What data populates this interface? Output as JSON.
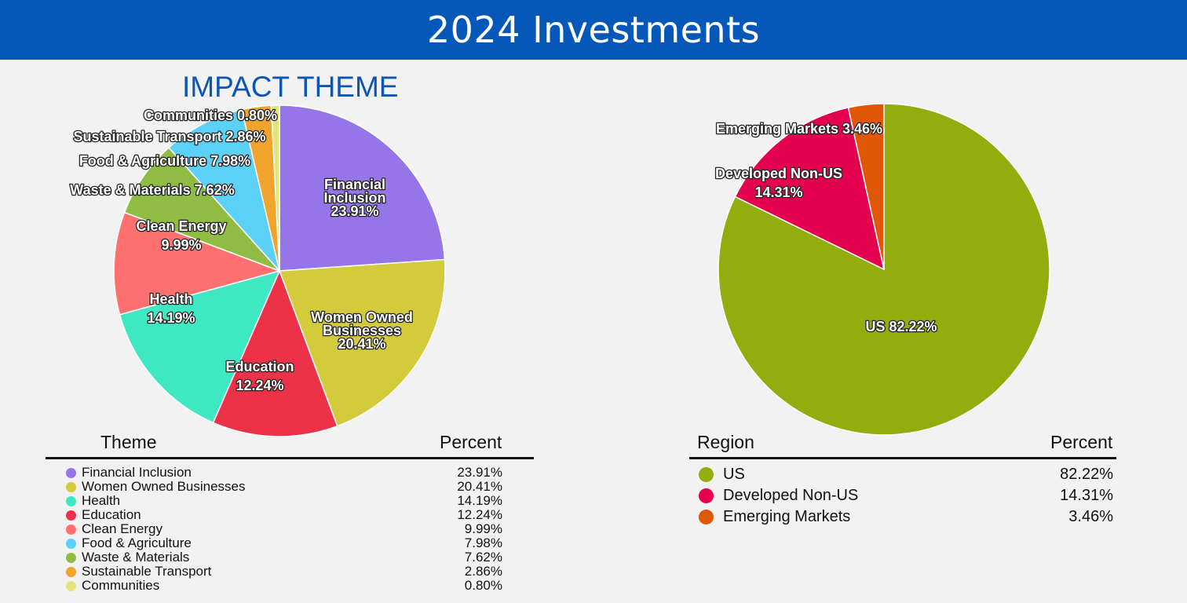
{
  "header": {
    "title": "2024 Investments"
  },
  "theme_chart_title": "IMPACT THEME",
  "theme_table": {
    "col1": "Theme",
    "col2": "Percent"
  },
  "region_table": {
    "col1": "Region",
    "col2": "Percent"
  },
  "chart_data": [
    {
      "type": "pie",
      "title": "IMPACT THEME",
      "slices": [
        {
          "label": "Financial Inclusion",
          "pie_label": [
            "Financial",
            "Inclusion",
            "23.91%"
          ],
          "percent_text": "23.91%",
          "value": 23.91,
          "color": "#9575e8"
        },
        {
          "label": "Women Owned Businesses",
          "pie_label": [
            "Women Owned",
            "Businesses",
            "20.41%"
          ],
          "percent_text": "20.41%",
          "value": 20.41,
          "color": "#d4cb3c"
        },
        {
          "label": "Education",
          "pie_label": [
            "Education",
            "12.24%"
          ],
          "percent_text": "12.24%",
          "value": 12.24,
          "color": "#ec3148"
        },
        {
          "label": "Health",
          "pie_label": [
            "Health",
            "14.19%"
          ],
          "percent_text": "14.19%",
          "value": 14.19,
          "color": "#3de8c2"
        },
        {
          "label": "Clean Energy",
          "pie_label": [
            "Clean Energy",
            "9.99%"
          ],
          "percent_text": "9.99%",
          "value": 9.99,
          "color": "#fe7170"
        },
        {
          "label": "Waste & Materials",
          "pie_label": [
            "Waste & Materials 7.62%"
          ],
          "percent_text": "7.62%",
          "value": 7.62,
          "color": "#90bc43"
        },
        {
          "label": "Food & Agriculture",
          "pie_label": [
            "Food & Agriculture 7.98%"
          ],
          "percent_text": "7.98%",
          "value": 7.98,
          "color": "#5bd1f7"
        },
        {
          "label": "Sustainable Transport",
          "pie_label": [
            "Sustainable Transport 2.86%"
          ],
          "percent_text": "2.86%",
          "value": 2.86,
          "color": "#f0a32d"
        },
        {
          "label": "Communities",
          "pie_label": [
            "Communities 0.80%"
          ],
          "percent_text": "0.80%",
          "value": 0.8,
          "color": "#e3e57c"
        }
      ],
      "table_order": [
        "Financial Inclusion",
        "Women Owned Businesses",
        "Health",
        "Education",
        "Clean Energy",
        "Food & Agriculture",
        "Waste & Materials",
        "Sustainable Transport",
        "Communities"
      ],
      "table_colors": {
        "Financial Inclusion": "#9575e8",
        "Women Owned Businesses": "#d4cb3c",
        "Health": "#3de8c2",
        "Education": "#ec3148",
        "Clean Energy": "#fe7170",
        "Food & Agriculture": "#5bd1f7",
        "Waste & Materials": "#90bc43",
        "Sustainable Transport": "#f0a32d",
        "Communities": "#e3e57c"
      }
    },
    {
      "type": "pie",
      "title": "",
      "slices": [
        {
          "label": "US",
          "pie_label": [
            "US 82.22%"
          ],
          "percent_text": "82.22%",
          "value": 82.22,
          "color": "#93ad0e"
        },
        {
          "label": "Developed Non-US",
          "pie_label": [
            "Developed Non-US",
            "14.31%"
          ],
          "percent_text": "14.31%",
          "value": 14.31,
          "color": "#e3004f"
        },
        {
          "label": "Emerging Markets",
          "pie_label": [
            "Emerging Markets 3.46%"
          ],
          "percent_text": "3.46%",
          "value": 3.46,
          "color": "#e05705"
        }
      ],
      "table_order": [
        "US",
        "Developed Non-US",
        "Emerging Markets"
      ],
      "table_colors": {
        "US": "#93ad0e",
        "Developed Non-US": "#e3004f",
        "Emerging Markets": "#e05705"
      }
    }
  ]
}
